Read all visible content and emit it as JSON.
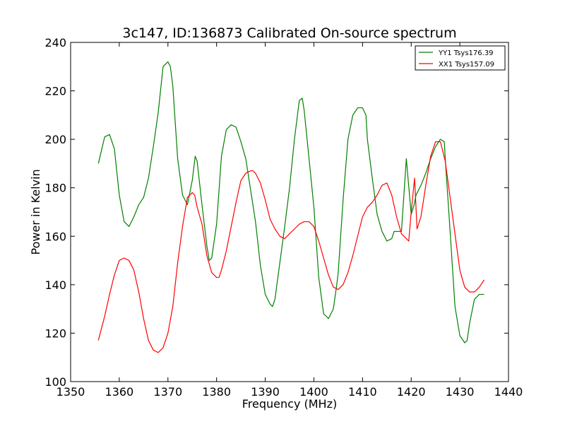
{
  "chart_data": {
    "type": "line",
    "title": "3c147, ID:136873 Calibrated On-source spectrum",
    "xlabel": "Frequency (MHz)",
    "ylabel": "Power in Kelvin",
    "xlim": [
      1350,
      1440
    ],
    "ylim": [
      100,
      240
    ],
    "xticks": [
      1350,
      1360,
      1370,
      1380,
      1390,
      1400,
      1410,
      1420,
      1430,
      1440
    ],
    "yticks": [
      100,
      120,
      140,
      160,
      180,
      200,
      220,
      240
    ],
    "grid": false,
    "legend_position": "top-right",
    "series": [
      {
        "name": "YY1 Tsys176.39",
        "color": "#008000",
        "x": [
          1355.7,
          1357.0,
          1358.0,
          1359.0,
          1360.0,
          1361.0,
          1362.0,
          1363.0,
          1364.0,
          1365.0,
          1366.0,
          1367.0,
          1368.0,
          1369.0,
          1370.0,
          1370.5,
          1371.0,
          1372.0,
          1373.0,
          1374.0,
          1375.0,
          1375.6,
          1376.0,
          1377.0,
          1378.0,
          1378.5,
          1379.0,
          1380.0,
          1381.0,
          1382.0,
          1383.0,
          1384.0,
          1385.0,
          1386.0,
          1387.0,
          1388.0,
          1389.0,
          1390.0,
          1391.0,
          1391.5,
          1392.0,
          1393.0,
          1394.0,
          1395.0,
          1396.0,
          1397.0,
          1397.6,
          1398.0,
          1399.0,
          1400.0,
          1401.0,
          1402.0,
          1403.0,
          1404.0,
          1404.7,
          1405.0,
          1406.0,
          1407.0,
          1408.0,
          1409.0,
          1410.0,
          1410.7,
          1411.0,
          1412.0,
          1413.0,
          1414.0,
          1415.0,
          1416.0,
          1416.5,
          1417.0,
          1418.0,
          1419.0,
          1420.0,
          1420.6,
          1421.0,
          1422.0,
          1423.0,
          1424.0,
          1425.0,
          1426.0,
          1426.8,
          1427.0,
          1428.0,
          1429.0,
          1430.0,
          1431.0,
          1431.5,
          1432.0,
          1433.0,
          1434.0,
          1435.0
        ],
        "y": [
          190,
          201,
          202,
          196,
          177,
          166,
          164,
          168,
          173,
          176,
          184,
          197,
          211,
          230,
          232,
          230,
          222,
          192,
          177,
          173,
          183,
          193,
          191,
          173,
          156,
          150,
          151,
          165,
          193,
          204,
          206,
          205,
          199,
          192,
          179,
          166,
          148,
          136,
          132,
          131,
          134,
          149,
          164,
          180,
          200,
          216,
          217,
          212,
          192,
          172,
          143,
          128,
          126,
          130,
          140,
          145,
          175,
          200,
          210,
          213,
          213,
          210,
          200,
          184,
          169,
          162,
          158,
          159,
          162,
          162,
          162,
          192,
          169,
          173,
          177,
          181,
          186,
          192,
          197,
          200,
          199,
          192,
          162,
          131,
          119,
          116,
          117,
          124,
          134,
          136,
          136
        ]
      },
      {
        "name": "XX1 Tsys157.09",
        "color": "#ff0000",
        "x": [
          1355.7,
          1357.0,
          1358.0,
          1359.0,
          1360.0,
          1361.0,
          1362.0,
          1363.0,
          1364.0,
          1365.0,
          1366.0,
          1367.0,
          1368.0,
          1368.5,
          1369.0,
          1370.0,
          1371.0,
          1372.0,
          1373.0,
          1374.0,
          1375.0,
          1375.5,
          1376.0,
          1377.0,
          1378.0,
          1379.0,
          1380.0,
          1380.5,
          1381.0,
          1382.0,
          1383.0,
          1384.0,
          1385.0,
          1386.0,
          1387.0,
          1387.5,
          1388.0,
          1389.0,
          1390.0,
          1391.0,
          1392.0,
          1393.0,
          1394.0,
          1395.0,
          1396.0,
          1397.0,
          1398.0,
          1398.5,
          1399.0,
          1400.0,
          1401.0,
          1402.0,
          1403.0,
          1404.0,
          1405.0,
          1406.0,
          1407.0,
          1408.0,
          1409.0,
          1410.0,
          1411.0,
          1412.0,
          1413.0,
          1414.0,
          1415.0,
          1416.0,
          1417.0,
          1418.0,
          1419.0,
          1419.5,
          1420.0,
          1420.7,
          1421.2,
          1422.0,
          1423.0,
          1424.0,
          1425.0,
          1426.0,
          1427.0,
          1428.0,
          1429.0,
          1430.0,
          1431.0,
          1432.0,
          1433.0,
          1434.0,
          1435.0
        ],
        "y": [
          117,
          127,
          136,
          144,
          150,
          151,
          150,
          146,
          137,
          126,
          117,
          113,
          112,
          113,
          114,
          120,
          131,
          149,
          164,
          176,
          178,
          177,
          172,
          165,
          152,
          145,
          143,
          143,
          146,
          154,
          164,
          174,
          183,
          186,
          187,
          187,
          186,
          182,
          175,
          167,
          163,
          160,
          159,
          161,
          163,
          165,
          166,
          166,
          166,
          164,
          158,
          151,
          144,
          139,
          138,
          140,
          145,
          152,
          160,
          168,
          172,
          174,
          177,
          181,
          182,
          177,
          168,
          161,
          159,
          158,
          170,
          184,
          163,
          168,
          181,
          193,
          199,
          199,
          191,
          176,
          161,
          146,
          139,
          137,
          137,
          139,
          142
        ]
      }
    ]
  }
}
